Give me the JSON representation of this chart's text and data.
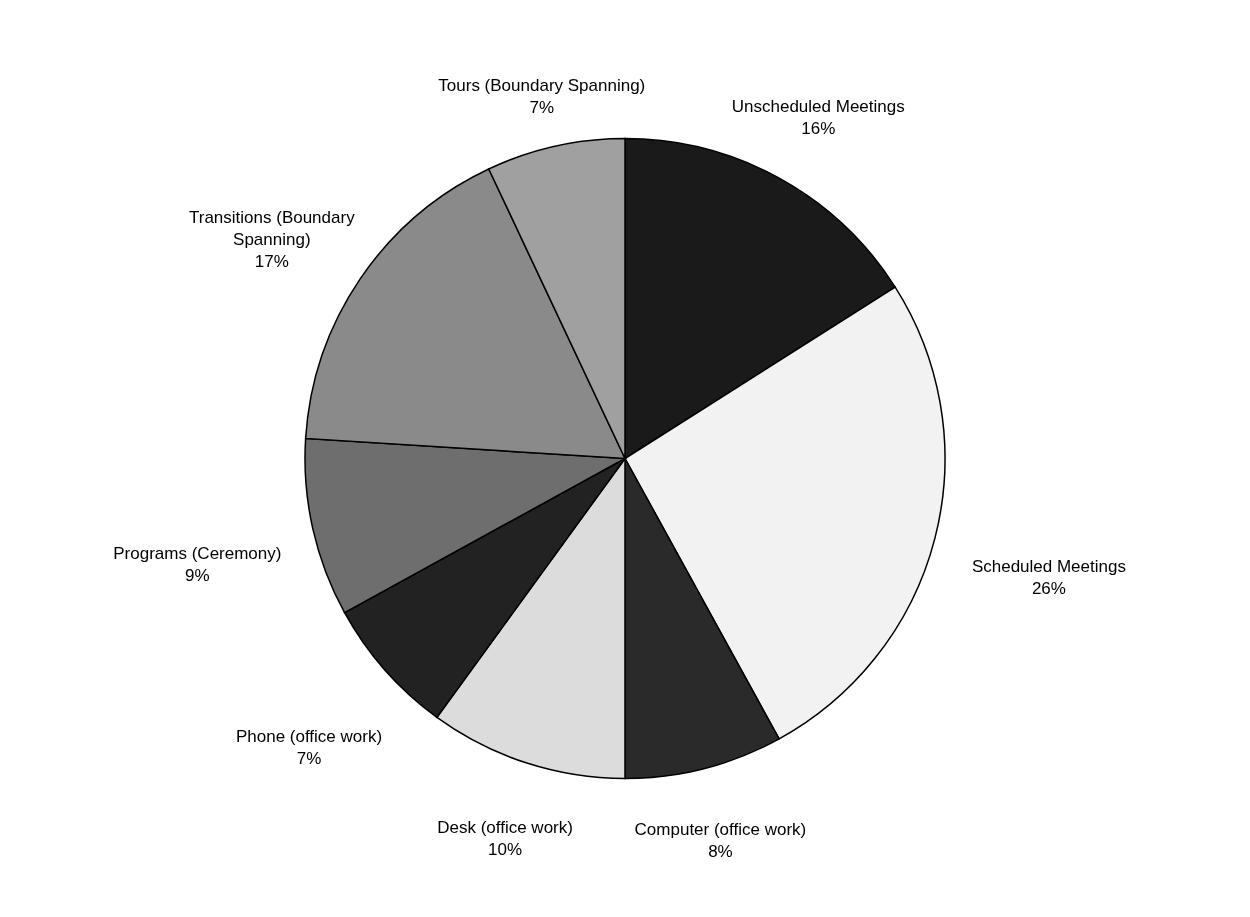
{
  "chart_data": {
    "type": "pie",
    "categories": [
      "Unscheduled Meetings",
      "Scheduled Meetings",
      "Computer (office work)",
      "Desk (office work)",
      "Phone (office work)",
      "Programs (Ceremony)",
      "Transitions (Boundary Spanning)",
      "Tours (Boundary Spanning)"
    ],
    "values": [
      16,
      26,
      8,
      10,
      7,
      9,
      17,
      7
    ],
    "value_labels": [
      "16%",
      "26%",
      "8%",
      "10%",
      "7%",
      "9%",
      "17%",
      "7%"
    ],
    "colors": [
      "#1a1a1a",
      "#f2f2f2",
      "#2a2a2a",
      "#dcdcdc",
      "#222222",
      "#6e6e6e",
      "#8a8a8a",
      "#a0a0a0"
    ]
  }
}
